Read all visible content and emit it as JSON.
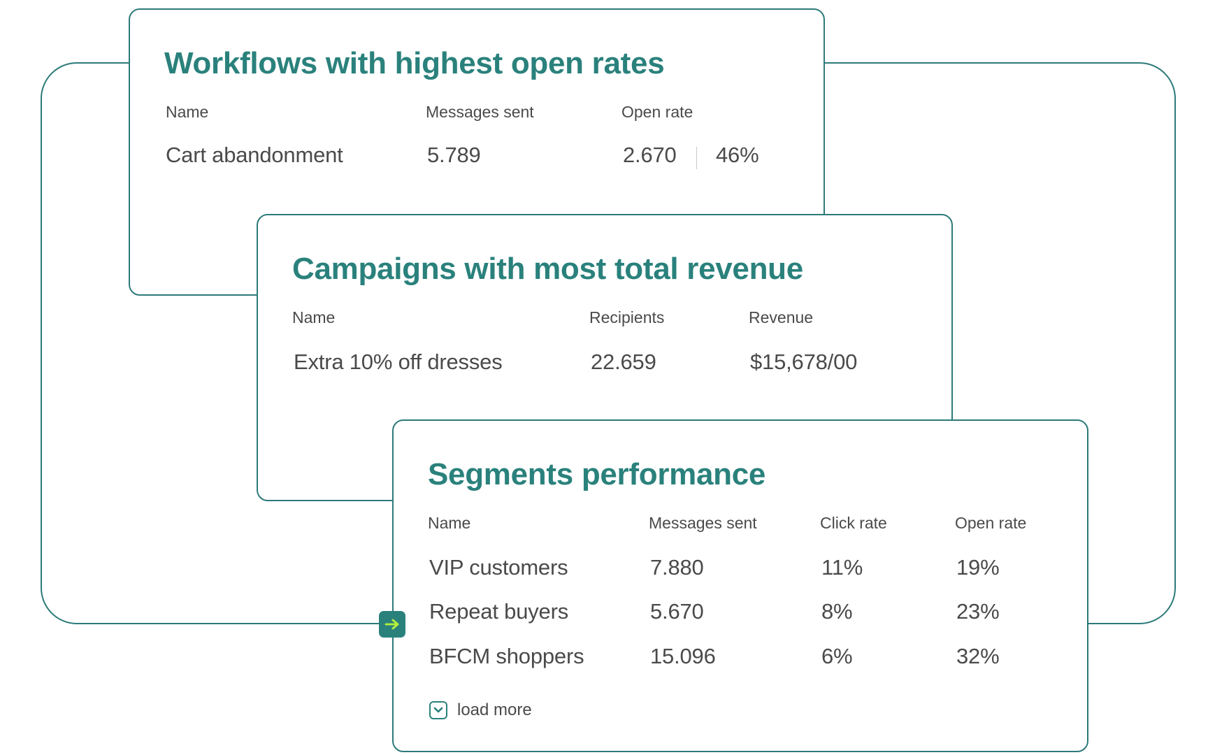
{
  "workflows": {
    "title": "Workflows with highest open rates",
    "headers": {
      "name": "Name",
      "messages_sent": "Messages sent",
      "open_rate": "Open rate"
    },
    "row": {
      "name": "Cart abandonment",
      "messages_sent": "5.789",
      "opens": "2.670",
      "open_rate": "46%"
    }
  },
  "campaigns": {
    "title": "Campaigns with most total revenue",
    "headers": {
      "name": "Name",
      "recipients": "Recipients",
      "revenue": "Revenue"
    },
    "row": {
      "name": "Extra 10% off dresses",
      "recipients": "22.659",
      "revenue": "$15,678/00"
    }
  },
  "segments": {
    "title": "Segments performance",
    "headers": {
      "name": "Name",
      "messages_sent": "Messages sent",
      "click_rate": "Click rate",
      "open_rate": "Open rate"
    },
    "rows": [
      {
        "name": "VIP customers",
        "messages_sent": "7.880",
        "click_rate": "11%",
        "open_rate": "19%"
      },
      {
        "name": "Repeat buyers",
        "messages_sent": "5.670",
        "click_rate": "8%",
        "open_rate": "23%"
      },
      {
        "name": "BFCM shoppers",
        "messages_sent": "15.096",
        "click_rate": "6%",
        "open_rate": "32%"
      }
    ],
    "load_more": "load more"
  },
  "colors": {
    "accent": "#2a817c",
    "border": "#2c7a79",
    "arrow": "#b6f23a",
    "text": "#4a4a4a"
  },
  "icons": {
    "connector": "arrow-right-icon",
    "load_more": "chevron-down-icon"
  }
}
